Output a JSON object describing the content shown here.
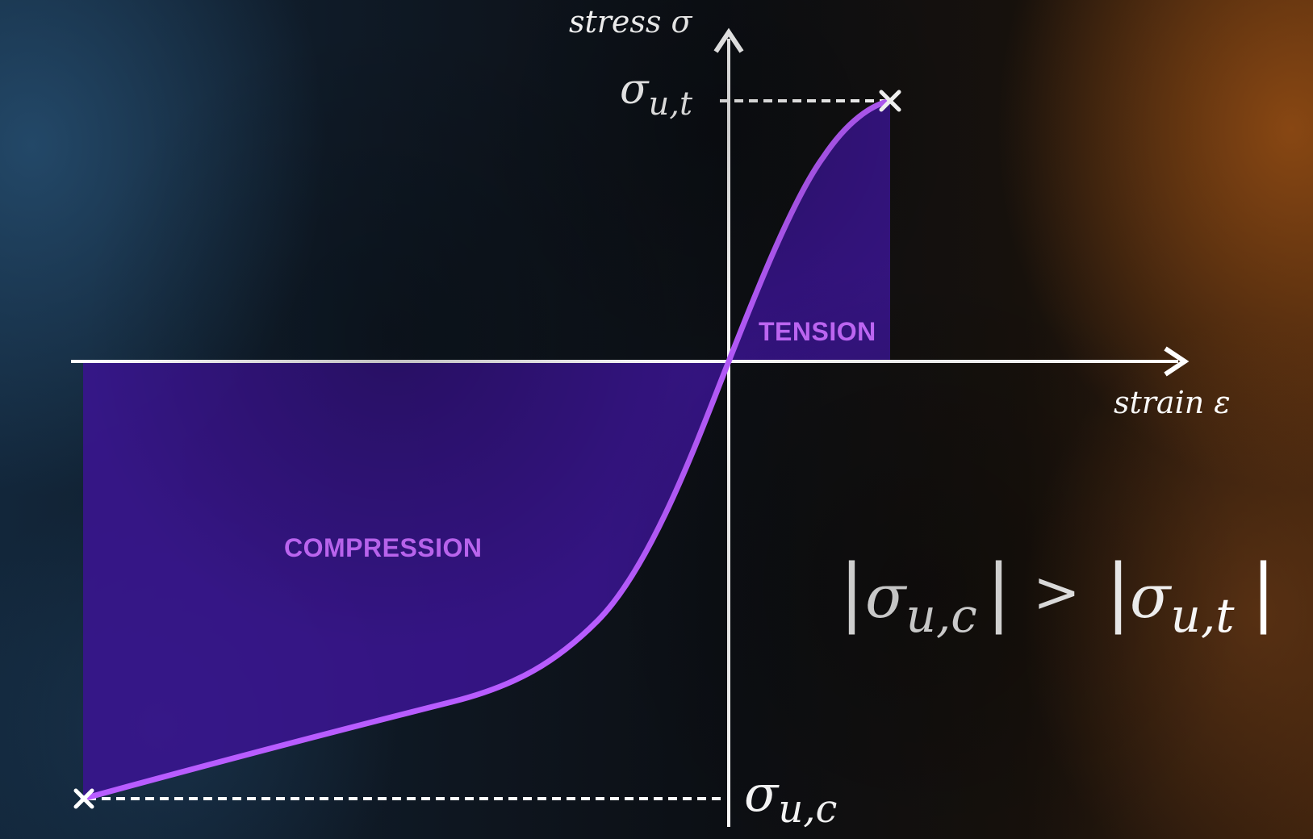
{
  "diagram": {
    "y_axis_label": "stress σ",
    "x_axis_label": "strain ε",
    "sigma_ut_label": "σ",
    "sigma_ut_sub": "u,t",
    "sigma_uc_label": "σ",
    "sigma_uc_sub": "u,c",
    "tension_label": "TENSION",
    "compression_label": "COMPRESSION",
    "inequality": {
      "bar": "|",
      "lhs_symbol": "σ",
      "lhs_sub": "u,c",
      "operator": ">",
      "rhs_symbol": "σ",
      "rhs_sub": "u,t"
    },
    "colors": {
      "curve": "#b85cff",
      "fill": "#3a1591",
      "axis": "#ffffff",
      "label": "#c76bff"
    }
  }
}
